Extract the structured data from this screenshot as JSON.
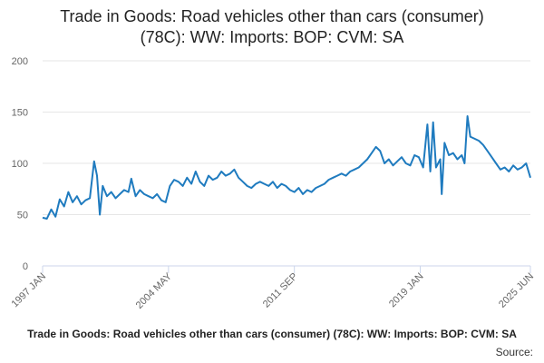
{
  "chart_data": {
    "type": "line",
    "title_lines": [
      "Trade in Goods: Road vehicles other than cars (consumer)",
      "(78C): WW: Imports: BOP: CVM: SA"
    ],
    "ylim": [
      0,
      200
    ],
    "yticks": [
      0,
      50,
      100,
      150,
      200
    ],
    "xlim": [
      "1997-01",
      "2025-06"
    ],
    "xtick_labels": [
      {
        "date": "1997-01",
        "label": "1997 JAN"
      },
      {
        "date": "2004-05",
        "label": "2004 MAY"
      },
      {
        "date": "2011-09",
        "label": "2011 SEP"
      },
      {
        "date": "2019-01",
        "label": "2019 JAN"
      },
      {
        "date": "2025-06",
        "label": "2025 JUN"
      }
    ],
    "grid": true,
    "legend_position": "bottom",
    "colors": {
      "line": "#1f7bbf",
      "gridline": "#e6e6e6"
    },
    "series": [
      {
        "name": "Trade in Goods: Road vehicles other than cars (consumer) (78C): WW: Imports: BOP: CVM: SA",
        "points": [
          [
            "1997-01",
            47
          ],
          [
            "1997-04",
            46
          ],
          [
            "1997-07",
            55
          ],
          [
            "1997-10",
            48
          ],
          [
            "1998-01",
            65
          ],
          [
            "1998-04",
            58
          ],
          [
            "1998-07",
            72
          ],
          [
            "1998-10",
            62
          ],
          [
            "1999-01",
            68
          ],
          [
            "1999-04",
            60
          ],
          [
            "1999-07",
            64
          ],
          [
            "1999-10",
            66
          ],
          [
            "2000-01",
            102
          ],
          [
            "2000-03",
            88
          ],
          [
            "2000-05",
            50
          ],
          [
            "2000-07",
            78
          ],
          [
            "2000-10",
            68
          ],
          [
            "2001-01",
            72
          ],
          [
            "2001-04",
            66
          ],
          [
            "2001-07",
            70
          ],
          [
            "2001-10",
            74
          ],
          [
            "2002-01",
            72
          ],
          [
            "2002-03",
            85
          ],
          [
            "2002-06",
            68
          ],
          [
            "2002-09",
            74
          ],
          [
            "2002-12",
            70
          ],
          [
            "2003-03",
            68
          ],
          [
            "2003-06",
            66
          ],
          [
            "2003-09",
            70
          ],
          [
            "2003-12",
            64
          ],
          [
            "2004-03",
            62
          ],
          [
            "2004-06",
            78
          ],
          [
            "2004-09",
            84
          ],
          [
            "2004-12",
            82
          ],
          [
            "2005-03",
            78
          ],
          [
            "2005-06",
            86
          ],
          [
            "2005-09",
            80
          ],
          [
            "2005-12",
            92
          ],
          [
            "2006-03",
            82
          ],
          [
            "2006-06",
            78
          ],
          [
            "2006-09",
            88
          ],
          [
            "2006-12",
            84
          ],
          [
            "2007-03",
            86
          ],
          [
            "2007-06",
            92
          ],
          [
            "2007-09",
            88
          ],
          [
            "2007-12",
            90
          ],
          [
            "2008-03",
            94
          ],
          [
            "2008-06",
            86
          ],
          [
            "2008-09",
            82
          ],
          [
            "2008-12",
            78
          ],
          [
            "2009-03",
            76
          ],
          [
            "2009-06",
            80
          ],
          [
            "2009-09",
            82
          ],
          [
            "2009-12",
            80
          ],
          [
            "2010-03",
            78
          ],
          [
            "2010-06",
            82
          ],
          [
            "2010-09",
            76
          ],
          [
            "2010-12",
            80
          ],
          [
            "2011-03",
            78
          ],
          [
            "2011-06",
            74
          ],
          [
            "2011-09",
            72
          ],
          [
            "2011-12",
            76
          ],
          [
            "2012-03",
            70
          ],
          [
            "2012-06",
            74
          ],
          [
            "2012-09",
            72
          ],
          [
            "2012-12",
            76
          ],
          [
            "2013-03",
            78
          ],
          [
            "2013-06",
            80
          ],
          [
            "2013-09",
            84
          ],
          [
            "2013-12",
            86
          ],
          [
            "2014-03",
            88
          ],
          [
            "2014-06",
            90
          ],
          [
            "2014-09",
            88
          ],
          [
            "2014-12",
            92
          ],
          [
            "2015-03",
            94
          ],
          [
            "2015-06",
            96
          ],
          [
            "2015-09",
            100
          ],
          [
            "2015-12",
            104
          ],
          [
            "2016-03",
            110
          ],
          [
            "2016-06",
            116
          ],
          [
            "2016-09",
            112
          ],
          [
            "2016-12",
            100
          ],
          [
            "2017-03",
            104
          ],
          [
            "2017-06",
            98
          ],
          [
            "2017-09",
            102
          ],
          [
            "2017-12",
            106
          ],
          [
            "2018-03",
            100
          ],
          [
            "2018-06",
            98
          ],
          [
            "2018-09",
            108
          ],
          [
            "2018-12",
            106
          ],
          [
            "2019-03",
            96
          ],
          [
            "2019-06",
            138
          ],
          [
            "2019-08",
            92
          ],
          [
            "2019-10",
            140
          ],
          [
            "2019-12",
            96
          ],
          [
            "2020-03",
            104
          ],
          [
            "2020-04",
            70
          ],
          [
            "2020-06",
            120
          ],
          [
            "2020-09",
            108
          ],
          [
            "2020-12",
            110
          ],
          [
            "2021-03",
            104
          ],
          [
            "2021-06",
            108
          ],
          [
            "2021-08",
            100
          ],
          [
            "2021-10",
            146
          ],
          [
            "2021-12",
            126
          ],
          [
            "2022-03",
            124
          ],
          [
            "2022-06",
            122
          ],
          [
            "2022-09",
            118
          ],
          [
            "2022-12",
            112
          ],
          [
            "2023-03",
            106
          ],
          [
            "2023-06",
            100
          ],
          [
            "2023-09",
            94
          ],
          [
            "2023-12",
            96
          ],
          [
            "2024-03",
            92
          ],
          [
            "2024-06",
            98
          ],
          [
            "2024-09",
            94
          ],
          [
            "2024-12",
            96
          ],
          [
            "2025-03",
            100
          ],
          [
            "2025-06",
            86
          ]
        ]
      }
    ]
  },
  "source_label": "Source:"
}
